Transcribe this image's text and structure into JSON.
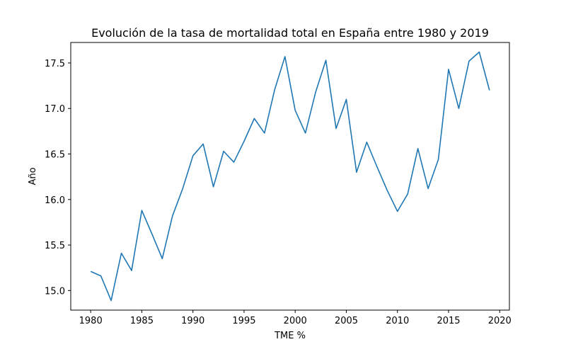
{
  "chart_data": {
    "type": "line",
    "title": "Evolución de la tasa de mortalidad total en España entre 1980 y 2019",
    "xlabel": "TME %",
    "ylabel": "Año",
    "xlim": [
      1978.05,
      2020.95
    ],
    "ylim": [
      14.785,
      17.725
    ],
    "xticks": [
      1980,
      1985,
      1990,
      1995,
      2000,
      2005,
      2010,
      2015,
      2020
    ],
    "yticks": [
      15.0,
      15.5,
      16.0,
      16.5,
      17.0,
      17.5
    ],
    "ytick_labels": [
      "15.0",
      "15.5",
      "16.0",
      "16.5",
      "17.0",
      "17.5"
    ],
    "grid": false,
    "line_color": "#1f77b4",
    "series": [
      {
        "name": "Tasa de mortalidad total",
        "x": [
          1980,
          1981,
          1982,
          1983,
          1984,
          1985,
          1986,
          1987,
          1988,
          1989,
          1990,
          1991,
          1992,
          1993,
          1994,
          1995,
          1996,
          1997,
          1998,
          1999,
          2000,
          2001,
          2002,
          2003,
          2004,
          2005,
          2006,
          2007,
          2008,
          2009,
          2010,
          2011,
          2012,
          2013,
          2014,
          2015,
          2016,
          2017,
          2018,
          2019
        ],
        "values": [
          15.21,
          15.16,
          14.89,
          15.41,
          15.22,
          15.88,
          15.62,
          15.35,
          15.82,
          16.12,
          16.48,
          16.61,
          16.14,
          16.53,
          16.41,
          16.64,
          16.89,
          16.73,
          17.21,
          17.57,
          16.98,
          16.73,
          17.18,
          17.53,
          16.78,
          17.1,
          16.3,
          16.63,
          16.36,
          16.1,
          15.87,
          16.06,
          16.56,
          16.12,
          16.44,
          17.43,
          17.0,
          17.52,
          17.62,
          17.2
        ]
      }
    ]
  }
}
